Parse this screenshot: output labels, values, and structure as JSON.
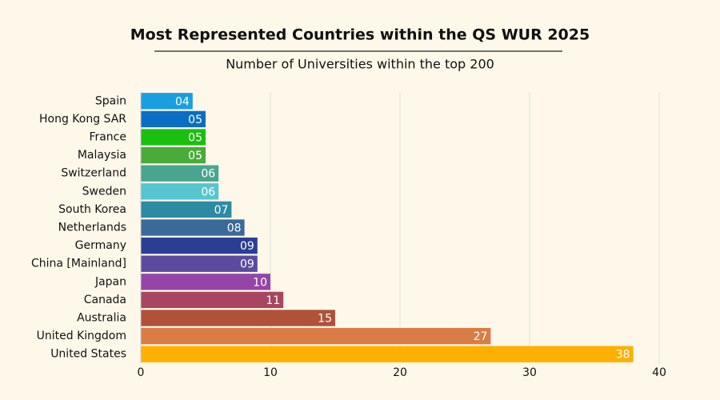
{
  "chart_data": {
    "type": "bar",
    "orientation": "horizontal",
    "title": "Most Represented Countries within the QS WUR 2025",
    "subtitle": "Number of Universities within the top 200",
    "categories": [
      "Spain",
      "Hong Kong SAR",
      "France",
      "Malaysia",
      "Switzerland",
      "Sweden",
      "South Korea",
      "Netherlands",
      "Germany",
      "China [Mainland]",
      "Japan",
      "Canada",
      "Australia",
      "United Kingdom",
      "United States"
    ],
    "values": [
      4,
      5,
      5,
      5,
      6,
      6,
      7,
      8,
      9,
      9,
      10,
      11,
      15,
      27,
      38
    ],
    "value_labels": [
      "04",
      "05",
      "05",
      "05",
      "06",
      "06",
      "07",
      "08",
      "09",
      "09",
      "10",
      "11",
      "15",
      "27",
      "38"
    ],
    "colors": [
      "#1a9ee0",
      "#0a6fc4",
      "#1bbf0f",
      "#4aaa3a",
      "#4aa58f",
      "#56c5cf",
      "#2e8aa3",
      "#3a6a9a",
      "#2a3f94",
      "#5b4aa0",
      "#9446a8",
      "#a64660",
      "#b0523a",
      "#d97c45",
      "#ffb000"
    ],
    "xlim": [
      0,
      40
    ],
    "xticks": [
      0,
      10,
      20,
      30,
      40
    ],
    "grid": true
  }
}
